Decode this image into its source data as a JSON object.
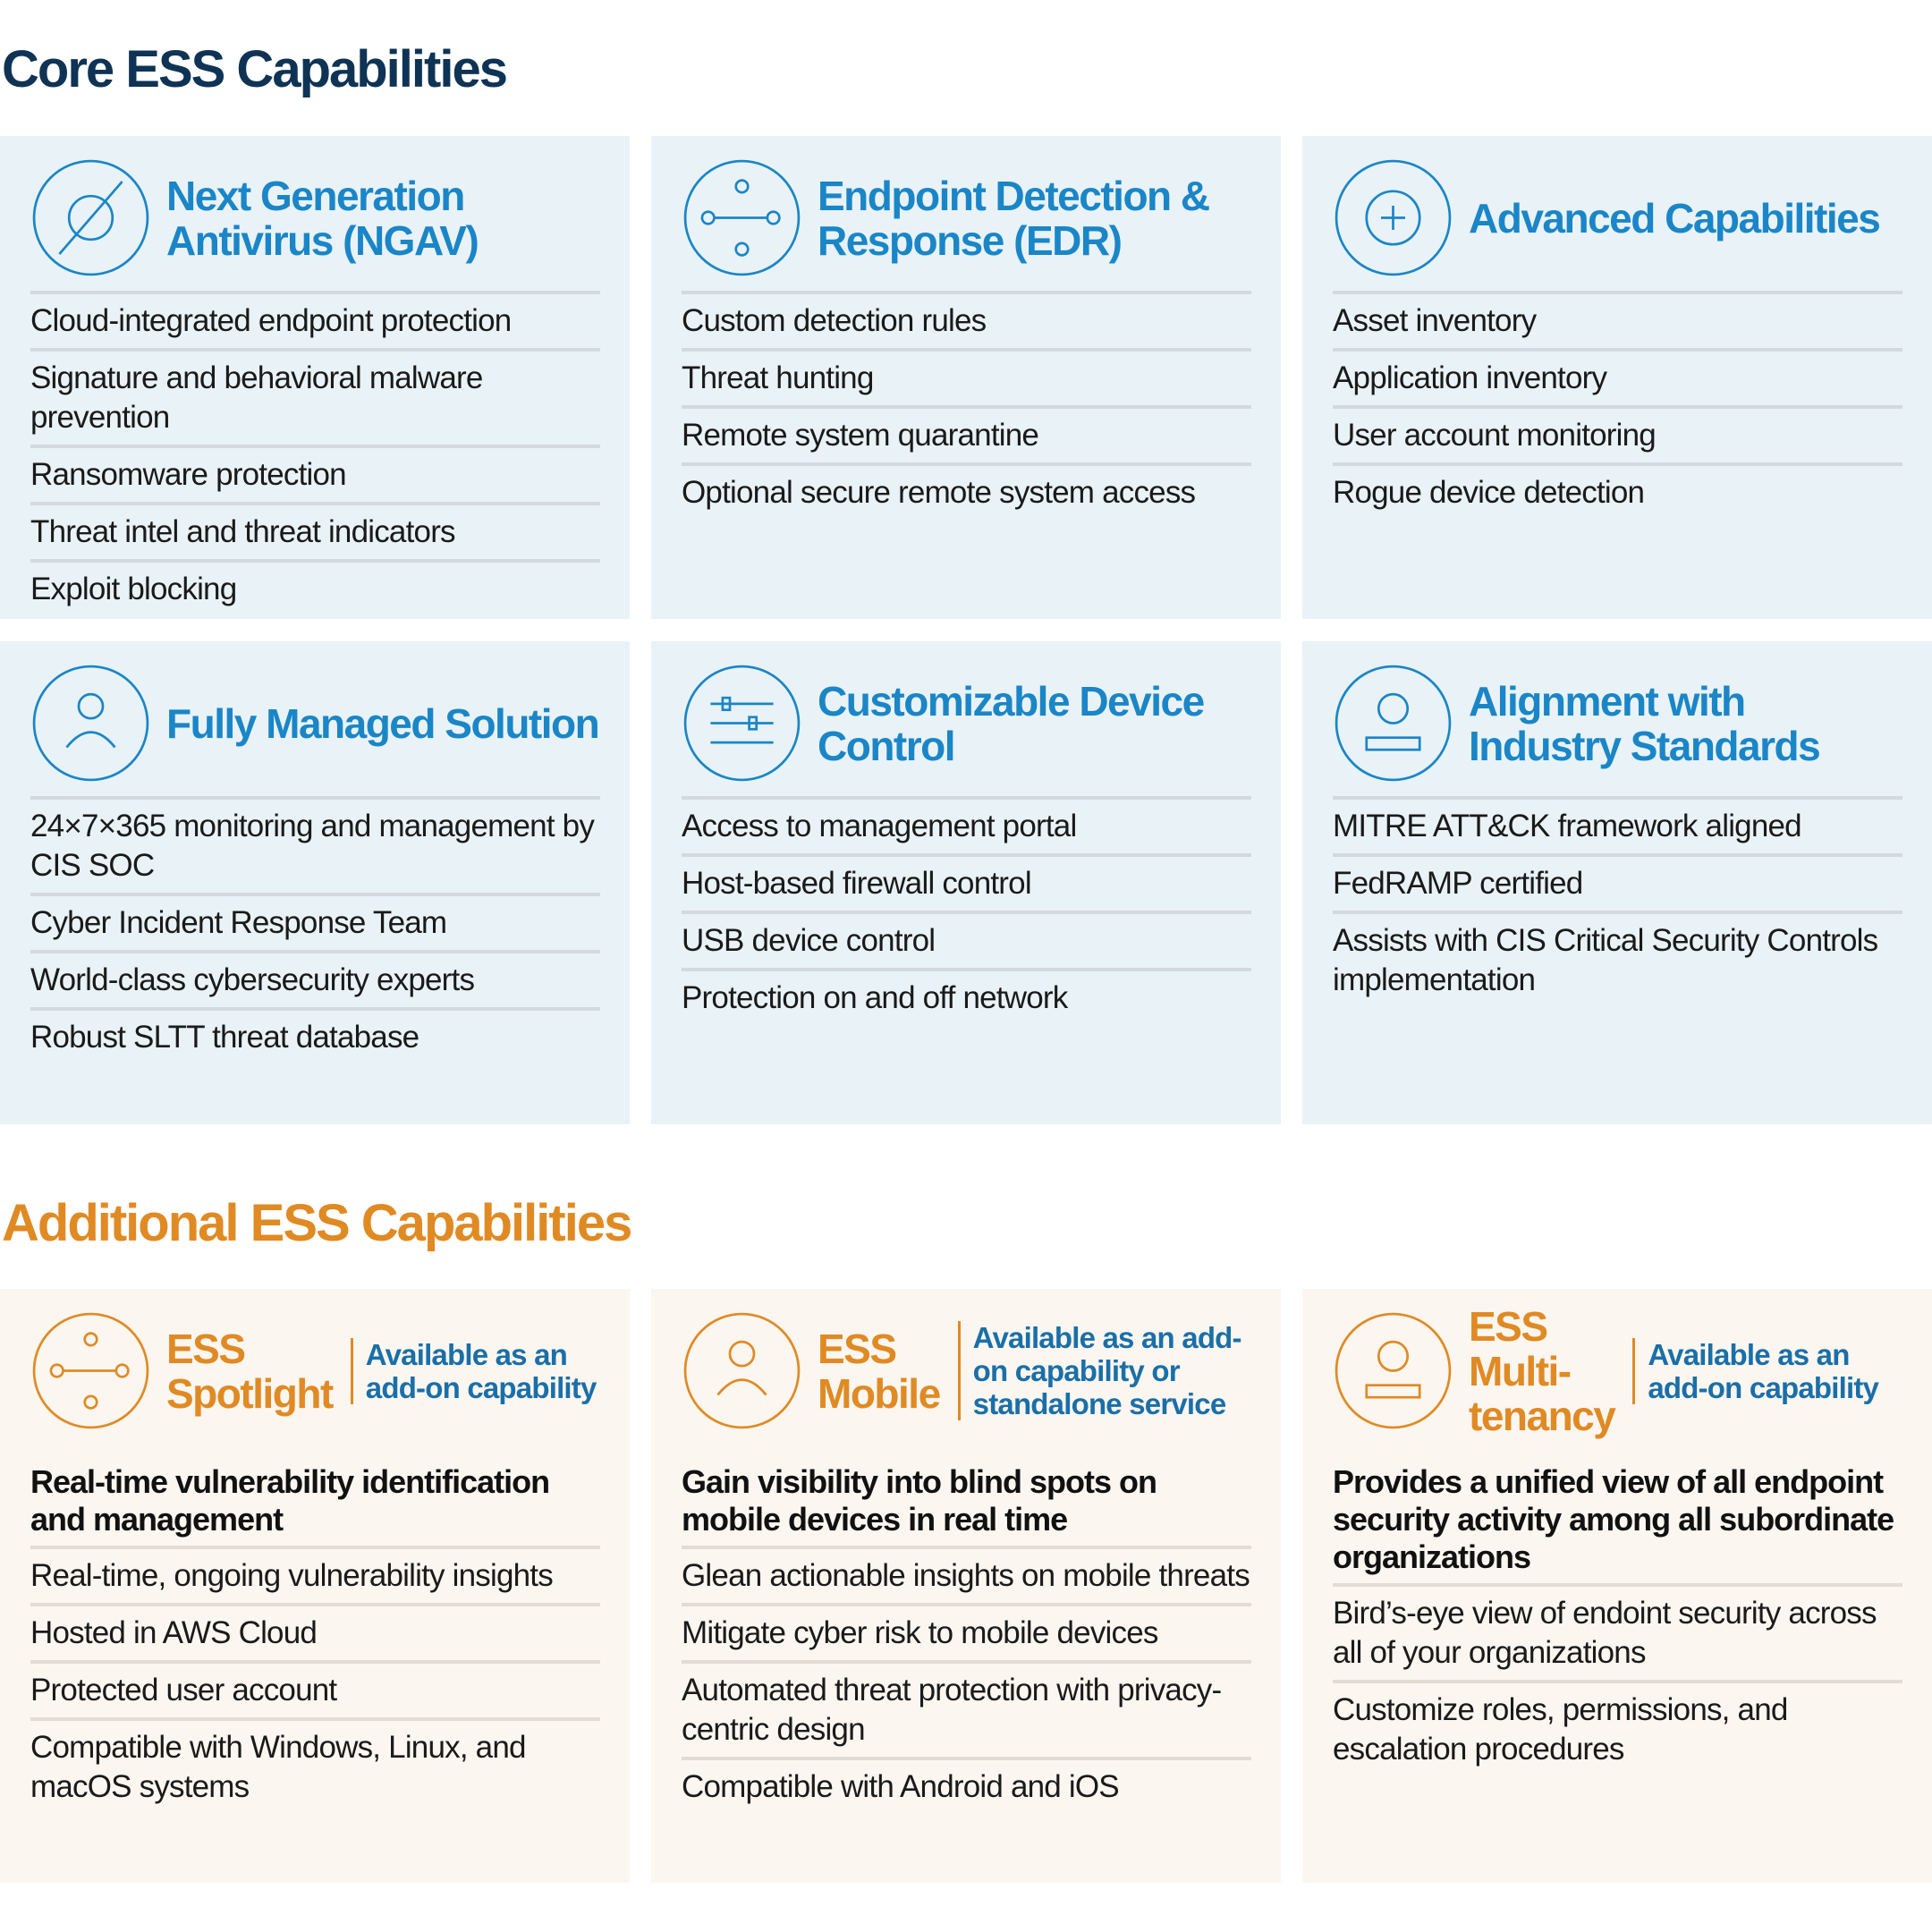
{
  "core": {
    "title": "Core ESS Capabilities",
    "cards": [
      {
        "title": "Next Generation Antivirus (NGAV)",
        "items": [
          "Cloud-integrated endpoint protection",
          "Signature and behavioral malware prevention",
          "Ransomware protection",
          "Threat intel and threat indicators",
          "Exploit blocking"
        ]
      },
      {
        "title": "Endpoint Detection & Response (EDR)",
        "items": [
          "Custom detection rules",
          "Threat hunting",
          "Remote system quarantine",
          "Optional secure remote system access"
        ]
      },
      {
        "title": "Advanced Capabilities",
        "items": [
          "Asset inventory",
          "Application inventory",
          "User account monitoring",
          "Rogue device detection"
        ]
      },
      {
        "title": "Fully Managed Solution",
        "items": [
          "24×7×365 monitoring and management by CIS SOC",
          "Cyber Incident Response Team",
          "World-class cybersecurity experts",
          "Robust SLTT threat database"
        ]
      },
      {
        "title": "Customizable Device Control",
        "items": [
          "Access to management portal",
          "Host-based firewall control",
          "USB device control",
          "Protection on and off network"
        ]
      },
      {
        "title": "Alignment with Industry Standards",
        "items": [
          "MITRE ATT&CK framework aligned",
          "FedRAMP certified",
          "Assists with CIS Critical Security Controls implementation"
        ]
      }
    ]
  },
  "additional": {
    "title": "Additional ESS Capabilities",
    "cards": [
      {
        "title": "ESS Spotlight",
        "note": "Available as an add-on capability",
        "lead": "Real-time vulnerability identification and management",
        "items": [
          "Real-time, ongoing vulnerability insights",
          "Hosted in AWS Cloud",
          "Protected user account",
          "Compatible with Windows, Linux, and macOS systems"
        ]
      },
      {
        "title": "ESS Mobile",
        "note": "Available as an add-on capability or standalone service",
        "lead": "Gain visibility into blind spots on mobile devices in real time",
        "items": [
          "Glean actionable insights on mobile threats",
          "Mitigate cyber risk to mobile devices",
          "Automated threat protection with privacy-centric design",
          "Compatible with Android and iOS"
        ]
      },
      {
        "title": "ESS Multi-tenancy",
        "note": "Available as an add-on capability",
        "lead": "Provides a unified view of all endpoint security activity among all subordinate organizations",
        "items": [
          "Bird’s-eye view of endoint security across all of your organizations",
          "Customize roles, permissions, and escalation procedures"
        ]
      }
    ]
  }
}
